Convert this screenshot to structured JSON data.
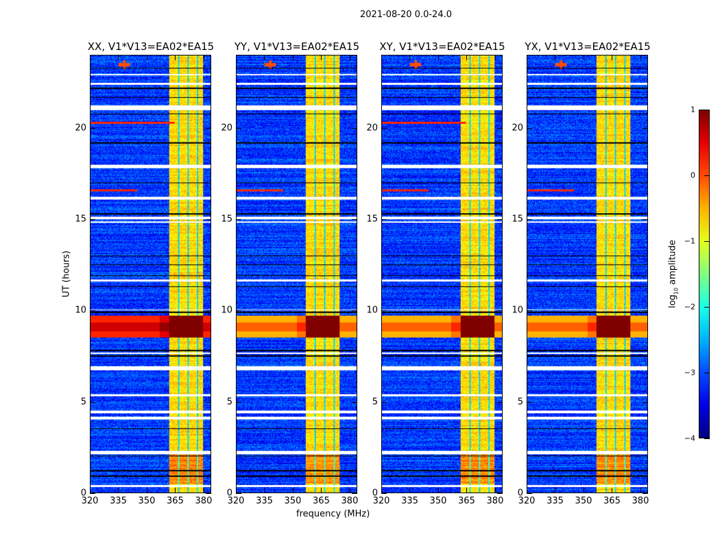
{
  "chart_data": {
    "type": "heatmap",
    "title": "2021-08-20 0.0-24.0",
    "xlabel": "frequency (MHz)",
    "ylabel": "UT (hours)",
    "xlim": [
      320,
      384
    ],
    "ylim": [
      0,
      24
    ],
    "xticks": [
      "320",
      "335",
      "350",
      "365",
      "380"
    ],
    "xtick_values": [
      320,
      335,
      350,
      365,
      380
    ],
    "yticks": [
      "0",
      "5",
      "10",
      "15",
      "20"
    ],
    "ytick_values": [
      0,
      5,
      10,
      15,
      20
    ],
    "panels": [
      {
        "title": "XX, V1*V13=EA02*EA15"
      },
      {
        "title": "YY, V1*V13=EA02*EA15"
      },
      {
        "title": "XY, V1*V13=EA02*EA15"
      },
      {
        "title": "YX, V1*V13=EA02*EA15"
      }
    ],
    "colorbar": {
      "label_main": "log",
      "label_sub": "10",
      "label_rest": " amplitude",
      "range": [
        -4,
        1
      ],
      "ticks": [
        "1",
        "0",
        "−1",
        "−2",
        "−3",
        "−4"
      ],
      "tick_values": [
        1,
        0,
        -1,
        -2,
        -3,
        -4
      ],
      "colormap": "jet"
    },
    "model": {
      "background_log_amp": -3.1,
      "rfi_band_mhz": [
        362,
        380
      ],
      "rfi_band_log_amp": -0.7,
      "rfi_gap_lines_mhz": [
        367,
        372,
        377
      ],
      "strong_event_ut": [
        8.5,
        9.7
      ],
      "strong_event_log_amp": 0.2,
      "strong_event_band_log_amp": 1.0,
      "point_source_mhz": 338,
      "point_source_ut": 23.5,
      "flagged_ut_ranges": [
        [
          0.3,
          0.4
        ],
        [
          2.1,
          2.3
        ],
        [
          4.0,
          4.15
        ],
        [
          4.35,
          4.5
        ],
        [
          5.3,
          5.4
        ],
        [
          6.7,
          6.95
        ],
        [
          7.6,
          7.7
        ],
        [
          10.0,
          10.05
        ],
        [
          11.6,
          11.7
        ],
        [
          14.8,
          14.9
        ],
        [
          15.0,
          15.15
        ],
        [
          16.1,
          16.25
        ],
        [
          17.8,
          18.0
        ],
        [
          21.0,
          21.25
        ],
        [
          22.4,
          22.5
        ],
        [
          22.9,
          23.0
        ]
      ],
      "dark_lines_ut": [
        0.9,
        1.2,
        2.0,
        3.5,
        7.5,
        7.8,
        9.9,
        11.3,
        11.9,
        12.5,
        13.0,
        15.3,
        17.0,
        19.2,
        20.8,
        21.7,
        22.2,
        23.3
      ]
    }
  }
}
